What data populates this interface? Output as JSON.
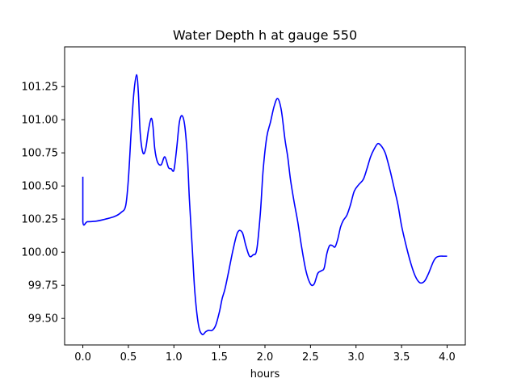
{
  "chart_data": {
    "type": "line",
    "title": "Water Depth h at gauge 550",
    "xlabel": "hours",
    "ylabel": "",
    "xlim": [
      -0.2,
      4.2
    ],
    "ylim": [
      99.3,
      101.55
    ],
    "grid": false,
    "legend": "none",
    "x_ticks": [
      0.0,
      0.5,
      1.0,
      1.5,
      2.0,
      2.5,
      3.0,
      3.5,
      4.0
    ],
    "x_tick_labels": [
      "0.0",
      "0.5",
      "1.0",
      "1.5",
      "2.0",
      "2.5",
      "3.0",
      "3.5",
      "4.0"
    ],
    "y_ticks": [
      99.5,
      99.75,
      100.0,
      100.25,
      100.5,
      100.75,
      101.0,
      101.25
    ],
    "y_tick_labels": [
      "99.50",
      "99.75",
      "100.00",
      "100.25",
      "100.50",
      "100.75",
      "101.00",
      "101.25"
    ],
    "series": [
      {
        "color": "#0000ff",
        "x": [
          0.0,
          0.0,
          0.05,
          0.15,
          0.25,
          0.35,
          0.42,
          0.47,
          0.5,
          0.53,
          0.56,
          0.59,
          0.61,
          0.63,
          0.66,
          0.69,
          0.72,
          0.75,
          0.77,
          0.79,
          0.82,
          0.86,
          0.9,
          0.94,
          0.97,
          1.0,
          1.03,
          1.06,
          1.09,
          1.12,
          1.15,
          1.17,
          1.2,
          1.23,
          1.27,
          1.31,
          1.35,
          1.38,
          1.42,
          1.46,
          1.5,
          1.53,
          1.56,
          1.6,
          1.65,
          1.7,
          1.75,
          1.79,
          1.83,
          1.87,
          1.91,
          1.95,
          1.98,
          2.02,
          2.06,
          2.1,
          2.14,
          2.18,
          2.22,
          2.25,
          2.28,
          2.32,
          2.36,
          2.4,
          2.45,
          2.5,
          2.54,
          2.58,
          2.62,
          2.65,
          2.68,
          2.71,
          2.74,
          2.77,
          2.8,
          2.83,
          2.86,
          2.9,
          2.94,
          2.98,
          3.03,
          3.08,
          3.12,
          3.16,
          3.2,
          3.24,
          3.28,
          3.32,
          3.35,
          3.38,
          3.42,
          3.46,
          3.5,
          3.55,
          3.6,
          3.65,
          3.7,
          3.75,
          3.79,
          3.82,
          3.85,
          3.88,
          3.92,
          3.96,
          4.0
        ],
        "y": [
          100.57,
          100.23,
          100.23,
          100.235,
          100.25,
          100.27,
          100.3,
          100.35,
          100.55,
          100.9,
          101.2,
          101.34,
          101.2,
          100.9,
          100.75,
          100.78,
          100.92,
          101.01,
          100.95,
          100.78,
          100.68,
          100.66,
          100.72,
          100.64,
          100.63,
          100.62,
          100.78,
          100.98,
          101.03,
          100.95,
          100.7,
          100.4,
          100.05,
          99.7,
          99.45,
          99.38,
          99.4,
          99.41,
          99.41,
          99.45,
          99.55,
          99.65,
          99.72,
          99.85,
          100.02,
          100.15,
          100.15,
          100.05,
          99.97,
          99.98,
          100.02,
          100.3,
          100.62,
          100.87,
          100.98,
          101.1,
          101.16,
          101.07,
          100.85,
          100.72,
          100.55,
          100.38,
          100.23,
          100.05,
          99.86,
          99.76,
          99.76,
          99.84,
          99.86,
          99.88,
          99.99,
          100.05,
          100.05,
          100.04,
          100.1,
          100.19,
          100.24,
          100.28,
          100.36,
          100.46,
          100.51,
          100.55,
          100.63,
          100.72,
          100.78,
          100.82,
          100.8,
          100.75,
          100.68,
          100.6,
          100.48,
          100.36,
          100.2,
          100.05,
          99.92,
          99.82,
          99.77,
          99.78,
          99.83,
          99.88,
          99.93,
          99.96,
          99.97,
          99.97,
          99.97
        ]
      }
    ]
  }
}
